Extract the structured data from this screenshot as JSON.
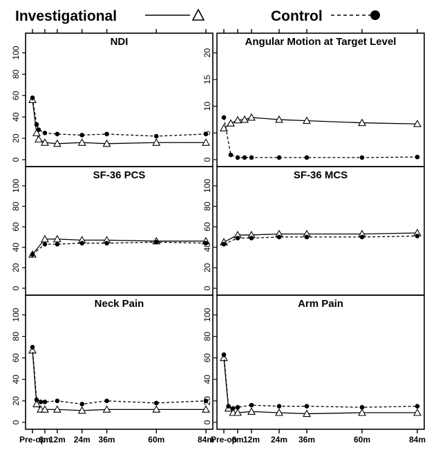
{
  "legend": {
    "investigational_label": "Investigational",
    "control_label": "Control",
    "investigational_marker": "open-triangle-solid-line",
    "control_marker": "filled-circle-dashed-line"
  },
  "x_axis": {
    "ticks": [
      0,
      6,
      12,
      24,
      36,
      60,
      84
    ],
    "tick_labels": [
      "Pre-op",
      "6m",
      "12m",
      "24m",
      "36m",
      "60m",
      "84m"
    ],
    "points": [
      0,
      2,
      3,
      6,
      12,
      24,
      36,
      60,
      84
    ]
  },
  "chart_data": [
    {
      "type": "line",
      "title": "NDI",
      "ylim": [
        0,
        110
      ],
      "yticks": [
        0,
        20,
        40,
        60,
        80,
        100
      ],
      "x": [
        0,
        2,
        3,
        6,
        12,
        24,
        36,
        60,
        84
      ],
      "series": [
        {
          "name": "Investigational",
          "values": [
            56,
            25,
            19,
            16,
            15,
            16,
            15,
            16,
            16
          ]
        },
        {
          "name": "Control",
          "values": [
            58,
            33,
            28,
            25,
            24,
            23,
            24,
            22,
            24
          ]
        }
      ]
    },
    {
      "type": "line",
      "title": "Angular Motion at Target Level",
      "ylim": [
        0,
        22
      ],
      "yticks": [
        0,
        5,
        10,
        15,
        20
      ],
      "x": [
        0,
        3,
        6,
        9,
        12,
        24,
        36,
        60,
        84
      ],
      "series": [
        {
          "name": "Investigational",
          "values": [
            5.9,
            6.8,
            7.4,
            7.5,
            7.9,
            7.5,
            7.3,
            6.9,
            6.7
          ]
        },
        {
          "name": "Control",
          "values": [
            7.9,
            0.9,
            0.4,
            0.4,
            0.4,
            0.4,
            0.4,
            0.4,
            0.5
          ]
        }
      ]
    },
    {
      "type": "line",
      "title": "SF-36 PCS",
      "ylim": [
        0,
        110
      ],
      "yticks": [
        0,
        20,
        40,
        60,
        80,
        100
      ],
      "x": [
        0,
        6,
        12,
        24,
        36,
        60,
        84
      ],
      "series": [
        {
          "name": "Investigational",
          "values": [
            33,
            48,
            48,
            47,
            47,
            46,
            46
          ]
        },
        {
          "name": "Control",
          "values": [
            33,
            43,
            43,
            44,
            44,
            45,
            44
          ]
        }
      ]
    },
    {
      "type": "line",
      "title": "SF-36 MCS",
      "ylim": [
        0,
        110
      ],
      "yticks": [
        0,
        20,
        40,
        60,
        80,
        100
      ],
      "x": [
        0,
        6,
        12,
        24,
        36,
        60,
        84
      ],
      "series": [
        {
          "name": "Investigational",
          "values": [
            45,
            52,
            52,
            53,
            53,
            53,
            54
          ]
        },
        {
          "name": "Control",
          "values": [
            43,
            49,
            49,
            50,
            50,
            50,
            51
          ]
        }
      ]
    },
    {
      "type": "line",
      "title": "Neck Pain",
      "ylim": [
        0,
        110
      ],
      "yticks": [
        0,
        20,
        40,
        60,
        80,
        100
      ],
      "x": [
        0,
        2,
        4,
        6,
        12,
        24,
        36,
        60,
        84
      ],
      "series": [
        {
          "name": "Investigational",
          "values": [
            67,
            17,
            12,
            12,
            12,
            11,
            12,
            12,
            12
          ]
        },
        {
          "name": "Control",
          "values": [
            70,
            21,
            19,
            19,
            20,
            17,
            20,
            18,
            20
          ]
        }
      ]
    },
    {
      "type": "line",
      "title": "Arm Pain",
      "ylim": [
        0,
        110
      ],
      "yticks": [
        0,
        20,
        40,
        60,
        80,
        100
      ],
      "x": [
        0,
        2,
        4,
        6,
        12,
        24,
        36,
        60,
        84
      ],
      "series": [
        {
          "name": "Investigational",
          "values": [
            60,
            13,
            9,
            9,
            10,
            9,
            8,
            9,
            9
          ]
        },
        {
          "name": "Control",
          "values": [
            63,
            15,
            13,
            14,
            16,
            15,
            15,
            14,
            15
          ]
        }
      ]
    }
  ]
}
